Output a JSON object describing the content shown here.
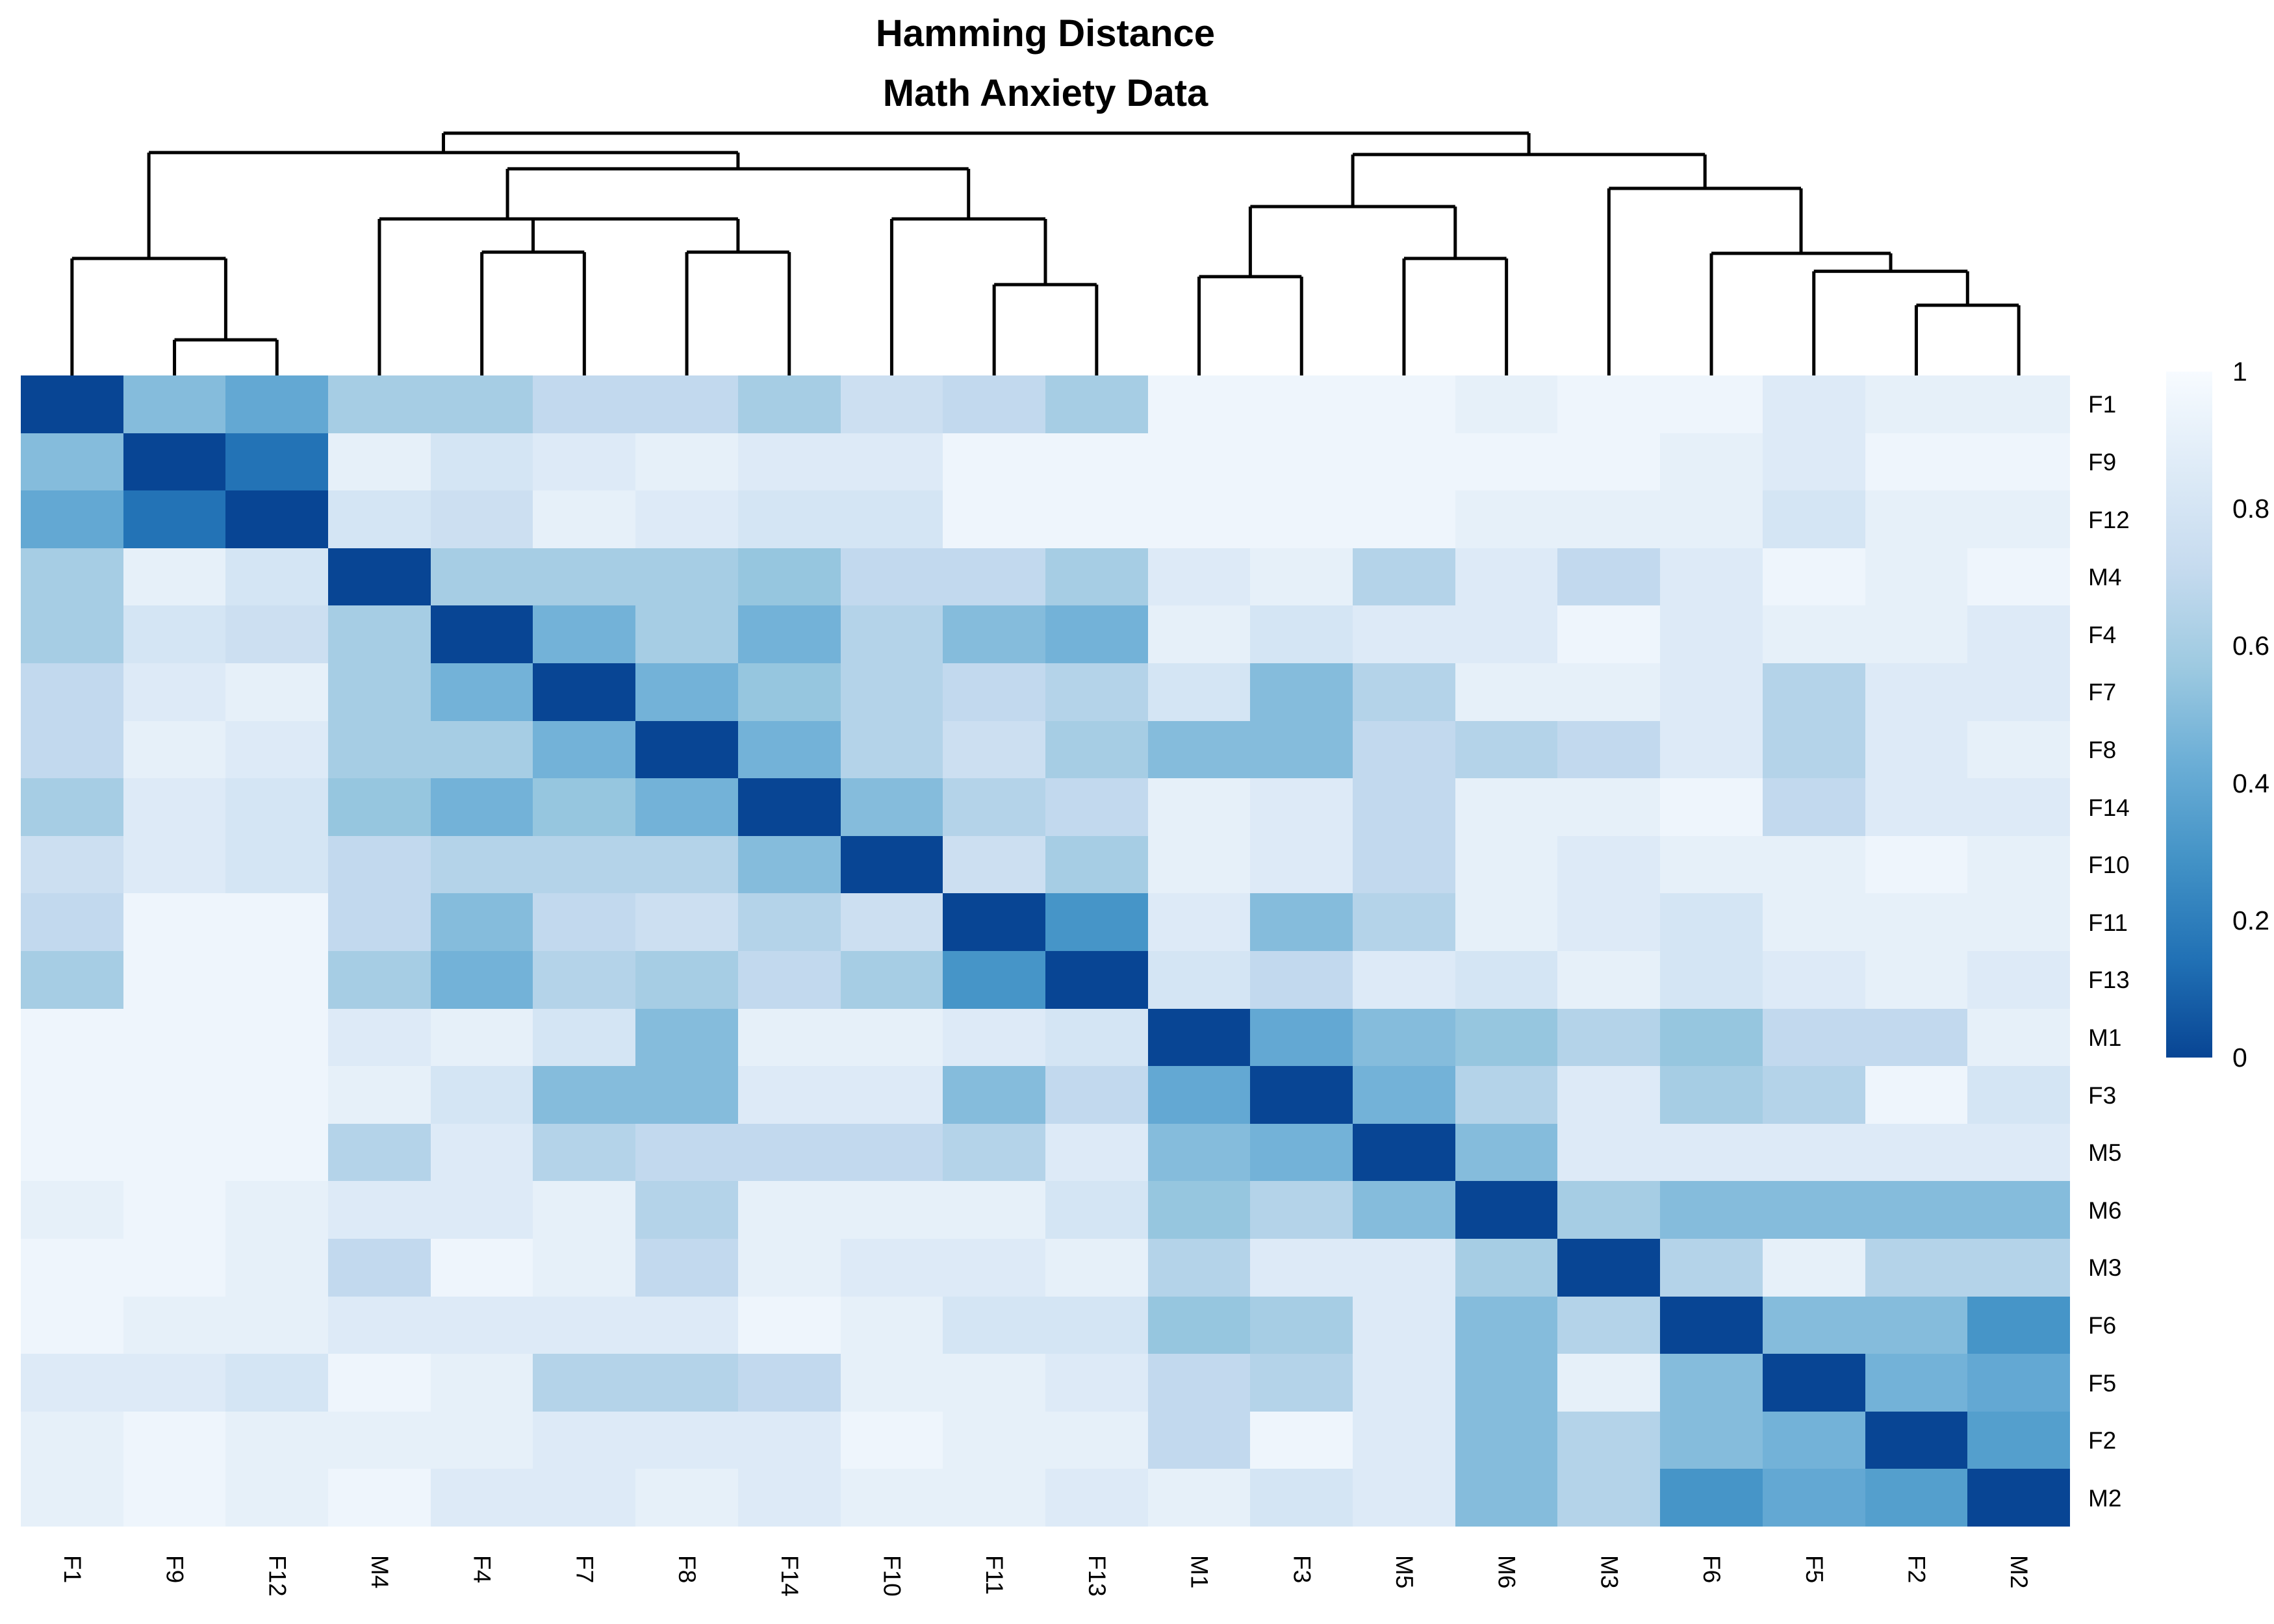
{
  "title": {
    "line1": "Hamming Distance",
    "line2": "Math Anxiety Data"
  },
  "legend": {
    "ticks": [
      {
        "label": "1",
        "value": 1.0
      },
      {
        "label": "0.8",
        "value": 0.8
      },
      {
        "label": "0.6",
        "value": 0.6
      },
      {
        "label": "0.4",
        "value": 0.4
      },
      {
        "label": "0.2",
        "value": 0.2
      },
      {
        "label": "0",
        "value": 0.0
      }
    ],
    "orientation": "vertical",
    "position": "right"
  },
  "colors": {
    "background": "#FFFFFF",
    "dendrogram_line": "#000000",
    "text": "#000000",
    "scale_stops_low_to_high": [
      "#084594",
      "#2171B5",
      "#4292C6",
      "#6BAED6",
      "#9ECAE1",
      "#C6DBEF",
      "#DEEBF7",
      "#F7FBFF"
    ]
  },
  "chart_data": {
    "type": "heatmap",
    "title": "Hamming Distance — Math Anxiety Data",
    "value_range": [
      0,
      1
    ],
    "grid": false,
    "legend_position": "right",
    "labels": [
      "F1",
      "F9",
      "F12",
      "M4",
      "F4",
      "F7",
      "F8",
      "F14",
      "F10",
      "F11",
      "F13",
      "M1",
      "F3",
      "M5",
      "M6",
      "M3",
      "F6",
      "F5",
      "F2",
      "M2"
    ],
    "matrix": [
      [
        0,
        0.5,
        0.4,
        0.6,
        0.6,
        0.7,
        0.7,
        0.6,
        0.75,
        0.7,
        0.6,
        0.95,
        0.95,
        0.95,
        0.9,
        0.95,
        0.95,
        0.85,
        0.9,
        0.9
      ],
      [
        0.5,
        0,
        0.15,
        0.9,
        0.8,
        0.85,
        0.9,
        0.85,
        0.85,
        0.95,
        0.95,
        0.95,
        0.95,
        0.95,
        0.95,
        0.95,
        0.9,
        0.85,
        0.95,
        0.95
      ],
      [
        0.4,
        0.15,
        0,
        0.8,
        0.75,
        0.9,
        0.85,
        0.8,
        0.8,
        0.95,
        0.95,
        0.95,
        0.95,
        0.95,
        0.9,
        0.9,
        0.9,
        0.8,
        0.9,
        0.9
      ],
      [
        0.6,
        0.9,
        0.8,
        0,
        0.6,
        0.6,
        0.6,
        0.55,
        0.7,
        0.7,
        0.6,
        0.85,
        0.9,
        0.65,
        0.85,
        0.7,
        0.85,
        0.95,
        0.9,
        0.95
      ],
      [
        0.6,
        0.8,
        0.75,
        0.6,
        0,
        0.45,
        0.6,
        0.45,
        0.65,
        0.5,
        0.45,
        0.9,
        0.8,
        0.85,
        0.85,
        0.95,
        0.85,
        0.9,
        0.9,
        0.85
      ],
      [
        0.7,
        0.85,
        0.9,
        0.6,
        0.45,
        0,
        0.45,
        0.55,
        0.65,
        0.7,
        0.65,
        0.8,
        0.5,
        0.65,
        0.9,
        0.9,
        0.85,
        0.65,
        0.85,
        0.85
      ],
      [
        0.7,
        0.9,
        0.85,
        0.6,
        0.6,
        0.45,
        0,
        0.45,
        0.65,
        0.75,
        0.6,
        0.5,
        0.5,
        0.7,
        0.65,
        0.7,
        0.85,
        0.65,
        0.85,
        0.9
      ],
      [
        0.6,
        0.85,
        0.8,
        0.55,
        0.45,
        0.55,
        0.45,
        0,
        0.5,
        0.65,
        0.7,
        0.9,
        0.85,
        0.7,
        0.9,
        0.9,
        0.95,
        0.7,
        0.85,
        0.85
      ],
      [
        0.75,
        0.85,
        0.8,
        0.7,
        0.65,
        0.65,
        0.65,
        0.5,
        0,
        0.75,
        0.6,
        0.9,
        0.85,
        0.7,
        0.9,
        0.85,
        0.9,
        0.9,
        0.95,
        0.9
      ],
      [
        0.7,
        0.95,
        0.95,
        0.7,
        0.5,
        0.7,
        0.75,
        0.65,
        0.75,
        0,
        0.3,
        0.85,
        0.5,
        0.65,
        0.9,
        0.85,
        0.8,
        0.9,
        0.9,
        0.9
      ],
      [
        0.6,
        0.95,
        0.95,
        0.6,
        0.45,
        0.65,
        0.6,
        0.7,
        0.6,
        0.3,
        0,
        0.8,
        0.7,
        0.85,
        0.8,
        0.9,
        0.8,
        0.85,
        0.9,
        0.85
      ],
      [
        0.95,
        0.95,
        0.95,
        0.85,
        0.9,
        0.8,
        0.5,
        0.9,
        0.9,
        0.85,
        0.8,
        0,
        0.4,
        0.5,
        0.55,
        0.65,
        0.55,
        0.7,
        0.7,
        0.9
      ],
      [
        0.95,
        0.95,
        0.95,
        0.9,
        0.8,
        0.5,
        0.5,
        0.85,
        0.85,
        0.5,
        0.7,
        0.4,
        0,
        0.45,
        0.65,
        0.85,
        0.6,
        0.65,
        0.95,
        0.8
      ],
      [
        0.95,
        0.95,
        0.95,
        0.65,
        0.85,
        0.65,
        0.7,
        0.7,
        0.7,
        0.65,
        0.85,
        0.5,
        0.45,
        0,
        0.5,
        0.85,
        0.85,
        0.85,
        0.85,
        0.85
      ],
      [
        0.9,
        0.95,
        0.9,
        0.85,
        0.85,
        0.9,
        0.65,
        0.9,
        0.9,
        0.9,
        0.8,
        0.55,
        0.65,
        0.5,
        0,
        0.6,
        0.5,
        0.5,
        0.5,
        0.5
      ],
      [
        0.95,
        0.95,
        0.9,
        0.7,
        0.95,
        0.9,
        0.7,
        0.9,
        0.85,
        0.85,
        0.9,
        0.65,
        0.85,
        0.85,
        0.6,
        0,
        0.65,
        0.9,
        0.65,
        0.65
      ],
      [
        0.95,
        0.9,
        0.9,
        0.85,
        0.85,
        0.85,
        0.85,
        0.95,
        0.9,
        0.8,
        0.8,
        0.55,
        0.6,
        0.85,
        0.5,
        0.65,
        0,
        0.5,
        0.5,
        0.3
      ],
      [
        0.85,
        0.85,
        0.8,
        0.95,
        0.9,
        0.65,
        0.65,
        0.7,
        0.9,
        0.9,
        0.85,
        0.7,
        0.65,
        0.85,
        0.5,
        0.9,
        0.5,
        0,
        0.45,
        0.4
      ],
      [
        0.9,
        0.95,
        0.9,
        0.9,
        0.9,
        0.85,
        0.85,
        0.85,
        0.95,
        0.9,
        0.9,
        0.7,
        0.95,
        0.85,
        0.5,
        0.65,
        0.5,
        0.45,
        0,
        0.35
      ],
      [
        0.9,
        0.95,
        0.9,
        0.95,
        0.85,
        0.85,
        0.9,
        0.85,
        0.9,
        0.9,
        0.85,
        0.9,
        0.8,
        0.85,
        0.5,
        0.65,
        0.3,
        0.4,
        0.35,
        0
      ]
    ],
    "dendrogram": {
      "axis": "columns-top",
      "height_scale": "0 = heatmap edge, 1 = root",
      "tree": {
        "h": 1.0,
        "children": [
          {
            "h": 0.92,
            "children": [
              {
                "h": 0.483,
                "children": [
                  {
                    "leaf": "F1"
                  },
                  {
                    "h": 0.147,
                    "children": [
                      {
                        "leaf": "F9"
                      },
                      {
                        "leaf": "F12"
                      }
                    ]
                  }
                ]
              },
              {
                "h": 0.853,
                "children": [
                  {
                    "h": 0.646,
                    "children": [
                      {
                        "leaf": "M4"
                      },
                      {
                        "h": 0.646,
                        "children": [
                          {
                            "h": 0.509,
                            "children": [
                              {
                                "leaf": "F4"
                              },
                              {
                                "leaf": "F7"
                              }
                            ]
                          },
                          {
                            "h": 0.509,
                            "children": [
                              {
                                "leaf": "F8"
                              },
                              {
                                "leaf": "F14"
                              }
                            ]
                          }
                        ]
                      }
                    ]
                  },
                  {
                    "h": 0.646,
                    "children": [
                      {
                        "leaf": "F10"
                      },
                      {
                        "h": 0.375,
                        "children": [
                          {
                            "leaf": "F11"
                          },
                          {
                            "leaf": "F13"
                          }
                        ]
                      }
                    ]
                  }
                ]
              }
            ]
          },
          {
            "h": 0.912,
            "children": [
              {
                "h": 0.697,
                "children": [
                  {
                    "h": 0.408,
                    "children": [
                      {
                        "leaf": "M1"
                      },
                      {
                        "leaf": "F3"
                      }
                    ]
                  },
                  {
                    "h": 0.483,
                    "children": [
                      {
                        "leaf": "M5"
                      },
                      {
                        "leaf": "M6"
                      }
                    ]
                  }
                ]
              },
              {
                "h": 0.772,
                "children": [
                  {
                    "leaf": "M3"
                  },
                  {
                    "h": 0.504,
                    "children": [
                      {
                        "leaf": "F6"
                      },
                      {
                        "h": 0.43,
                        "children": [
                          {
                            "leaf": "F5"
                          },
                          {
                            "h": 0.29,
                            "children": [
                              {
                                "leaf": "F2"
                              },
                              {
                                "leaf": "M2"
                              }
                            ]
                          }
                        ]
                      }
                    ]
                  }
                ]
              }
            ]
          }
        ]
      }
    }
  }
}
